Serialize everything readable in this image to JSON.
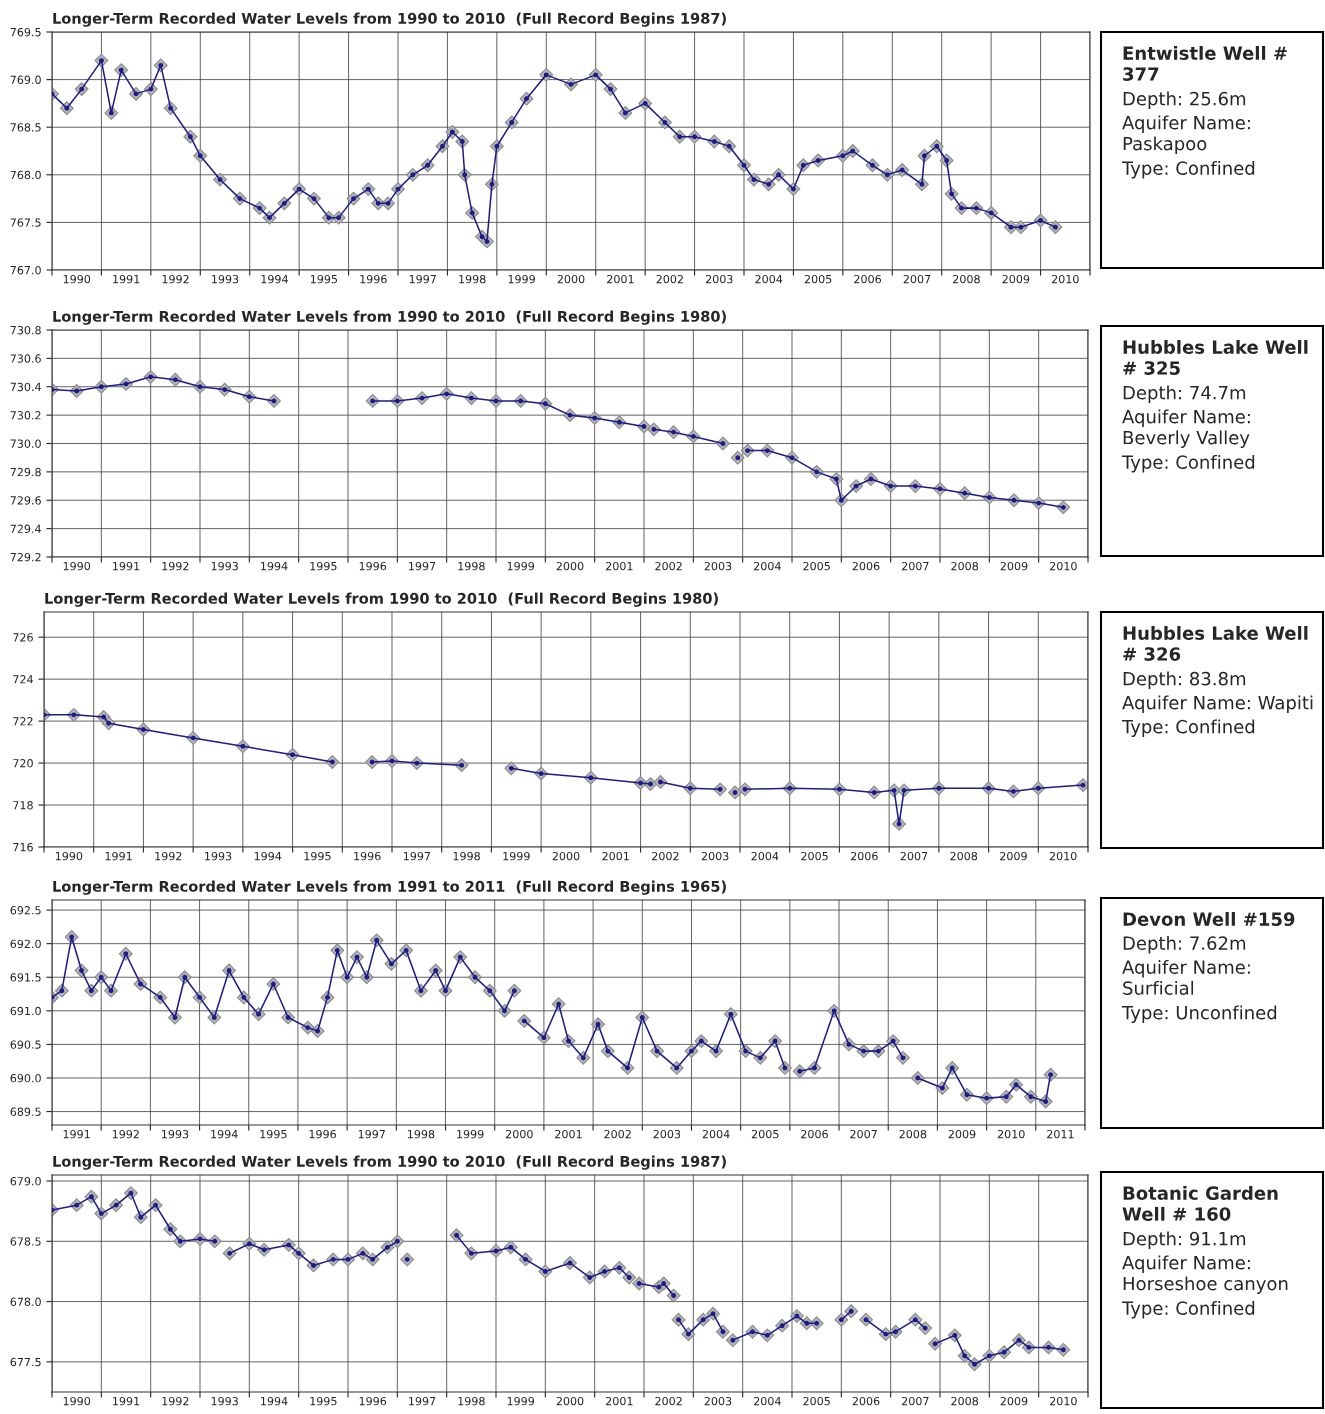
{
  "chart_data": [
    {
      "type": "line",
      "title": "Longer-Term Recorded Water Levels from 1990 to 2010  (Full Record Begins 1987)",
      "grid": true,
      "marker": "diamond",
      "line_style": "solid",
      "xlim": [
        1990,
        2011
      ],
      "xticks": [
        {
          "value": 1990,
          "label": null
        },
        {
          "value": 1990.5,
          "label": "1990"
        },
        {
          "value": 1991,
          "label": null
        },
        {
          "value": 1991.5,
          "label": "1991"
        },
        {
          "value": 1992,
          "label": null
        },
        {
          "value": 1992.5,
          "label": "1992"
        },
        {
          "value": 1993,
          "label": null
        },
        {
          "value": 1993.5,
          "label": "1993"
        },
        {
          "value": 1994,
          "label": null
        },
        {
          "value": 1994.5,
          "label": "1994"
        },
        {
          "value": 1995,
          "label": null
        },
        {
          "value": 1995.5,
          "label": "1995"
        },
        {
          "value": 1996,
          "label": null
        },
        {
          "value": 1996.5,
          "label": "1996"
        },
        {
          "value": 1997,
          "label": null
        },
        {
          "value": 1997.5,
          "label": "1997"
        },
        {
          "value": 1998,
          "label": null
        },
        {
          "value": 1998.5,
          "label": "1998"
        },
        {
          "value": 1999,
          "label": null
        },
        {
          "value": 1999.5,
          "label": "1999"
        },
        {
          "value": 2000,
          "label": null
        },
        {
          "value": 2000.5,
          "label": "2000"
        },
        {
          "value": 2001,
          "label": null
        },
        {
          "value": 2001.5,
          "label": "2001"
        },
        {
          "value": 2002,
          "label": null
        },
        {
          "value": 2002.5,
          "label": "2002"
        },
        {
          "value": 2003,
          "label": null
        },
        {
          "value": 2003.5,
          "label": "2003"
        },
        {
          "value": 2004,
          "label": null
        },
        {
          "value": 2004.5,
          "label": "2004"
        },
        {
          "value": 2005,
          "label": null
        },
        {
          "value": 2005.5,
          "label": "2005"
        },
        {
          "value": 2006,
          "label": null
        },
        {
          "value": 2006.5,
          "label": "2006"
        },
        {
          "value": 2007,
          "label": null
        },
        {
          "value": 2007.5,
          "label": "2007"
        },
        {
          "value": 2008,
          "label": null
        },
        {
          "value": 2008.5,
          "label": "2008"
        },
        {
          "value": 2009,
          "label": null
        },
        {
          "value": 2009.5,
          "label": "2009"
        },
        {
          "value": 2010,
          "label": null
        },
        {
          "value": 2010.5,
          "label": "2010"
        },
        {
          "value": 2011,
          "label": null
        }
      ],
      "ylim": [
        767.0,
        769.5
      ],
      "yticks": [
        {
          "value": 767.0,
          "label": "767.0"
        },
        {
          "value": 767.5,
          "label": "767.5"
        },
        {
          "value": 768.0,
          "label": "768.0"
        },
        {
          "value": 768.5,
          "label": "768.5"
        },
        {
          "value": 769.0,
          "label": "769.0"
        },
        {
          "value": 769.5,
          "label": "769.5"
        }
      ],
      "series": [
        {
          "color": "#1c1c8c",
          "x": [
            1990.0,
            1990.3,
            1990.6,
            1991.0,
            1991.2,
            1991.4,
            1991.7,
            1992.0,
            1992.2,
            1992.4,
            1992.8,
            1993.0,
            1993.4,
            1993.8,
            1994.2,
            1994.4,
            1994.7,
            1995.0,
            1995.3,
            1995.6,
            1995.8,
            1996.1,
            1996.4,
            1996.6,
            1996.8,
            1997.0,
            1997.3,
            1997.6,
            1997.9,
            1998.1,
            1998.3,
            1998.35,
            1998.5,
            1998.7,
            1998.8,
            1998.9,
            1999.0,
            1999.3,
            1999.6,
            2000.0,
            2000.5,
            2001.0,
            2001.3,
            2001.6,
            2002.0,
            2002.4,
            2002.7,
            2003.0,
            2003.4,
            2003.7,
            2004.0,
            2004.2,
            2004.5,
            2004.7,
            2005.0,
            2005.2,
            2005.5,
            2006.0,
            2006.2,
            2006.6,
            2006.9,
            2007.2,
            2007.6,
            2007.65,
            2007.9,
            2008.1,
            2008.2,
            2008.4,
            2008.7,
            2009.0,
            2009.4,
            2009.6,
            2010.0,
            2010.3
          ],
          "values": [
            768.85,
            768.7,
            768.9,
            769.2,
            768.65,
            769.1,
            768.85,
            768.9,
            769.15,
            768.7,
            768.4,
            768.2,
            767.95,
            767.75,
            767.65,
            767.55,
            767.7,
            767.85,
            767.75,
            767.55,
            767.55,
            767.75,
            767.85,
            767.7,
            767.7,
            767.85,
            768.0,
            768.1,
            768.3,
            768.45,
            768.35,
            768.0,
            767.6,
            767.35,
            767.3,
            767.9,
            768.3,
            768.55,
            768.8,
            769.05,
            768.95,
            769.05,
            768.9,
            768.65,
            768.75,
            768.55,
            768.4,
            768.4,
            768.35,
            768.3,
            768.1,
            767.95,
            767.9,
            768.0,
            767.85,
            768.1,
            768.15,
            768.2,
            768.25,
            768.1,
            768.0,
            768.05,
            767.9,
            768.2,
            768.3,
            768.15,
            767.8,
            767.65,
            767.65,
            767.6,
            767.45,
            767.45,
            767.52,
            767.45
          ]
        }
      ]
    },
    {
      "type": "other",
      "title": "Entwistle Well # 377",
      "annotations": [
        "Depth: 25.6m",
        "Aquifer Name: Paskapoo",
        "Type: Confined"
      ]
    },
    {
      "type": "line",
      "title": "Longer-Term Recorded Water Levels from 1990 to 2010  (Full Record Begins 1980)",
      "grid": true,
      "marker": "diamond",
      "line_style": "solid",
      "xlim": [
        1990,
        2011
      ],
      "xticks": [
        {
          "value": 1990,
          "label": null
        },
        {
          "value": 1990.5,
          "label": "1990"
        },
        {
          "value": 1991,
          "label": null
        },
        {
          "value": 1991.5,
          "label": "1991"
        },
        {
          "value": 1992,
          "label": null
        },
        {
          "value": 1992.5,
          "label": "1992"
        },
        {
          "value": 1993,
          "label": null
        },
        {
          "value": 1993.5,
          "label": "1993"
        },
        {
          "value": 1994,
          "label": null
        },
        {
          "value": 1994.5,
          "label": "1994"
        },
        {
          "value": 1995,
          "label": null
        },
        {
          "value": 1995.5,
          "label": "1995"
        },
        {
          "value": 1996,
          "label": null
        },
        {
          "value": 1996.5,
          "label": "1996"
        },
        {
          "value": 1997,
          "label": null
        },
        {
          "value": 1997.5,
          "label": "1997"
        },
        {
          "value": 1998,
          "label": null
        },
        {
          "value": 1998.5,
          "label": "1998"
        },
        {
          "value": 1999,
          "label": null
        },
        {
          "value": 1999.5,
          "label": "1999"
        },
        {
          "value": 2000,
          "label": null
        },
        {
          "value": 2000.5,
          "label": "2000"
        },
        {
          "value": 2001,
          "label": null
        },
        {
          "value": 2001.5,
          "label": "2001"
        },
        {
          "value": 2002,
          "label": null
        },
        {
          "value": 2002.5,
          "label": "2002"
        },
        {
          "value": 2003,
          "label": null
        },
        {
          "value": 2003.5,
          "label": "2003"
        },
        {
          "value": 2004,
          "label": null
        },
        {
          "value": 2004.5,
          "label": "2004"
        },
        {
          "value": 2005,
          "label": null
        },
        {
          "value": 2005.5,
          "label": "2005"
        },
        {
          "value": 2006,
          "label": null
        },
        {
          "value": 2006.5,
          "label": "2006"
        },
        {
          "value": 2007,
          "label": null
        },
        {
          "value": 2007.5,
          "label": "2007"
        },
        {
          "value": 2008,
          "label": null
        },
        {
          "value": 2008.5,
          "label": "2008"
        },
        {
          "value": 2009,
          "label": null
        },
        {
          "value": 2009.5,
          "label": "2009"
        },
        {
          "value": 2010,
          "label": null
        },
        {
          "value": 2010.5,
          "label": "2010"
        },
        {
          "value": 2011,
          "label": null
        }
      ],
      "ylim": [
        729.2,
        730.8
      ],
      "yticks": [
        {
          "value": 729.2,
          "label": "729.2"
        },
        {
          "value": 729.4,
          "label": "729.4"
        },
        {
          "value": 729.6,
          "label": "729.6"
        },
        {
          "value": 729.8,
          "label": "729.8"
        },
        {
          "value": 730.0,
          "label": "730.0"
        },
        {
          "value": 730.2,
          "label": "730.2"
        },
        {
          "value": 730.4,
          "label": "730.4"
        },
        {
          "value": 730.6,
          "label": "730.6"
        },
        {
          "value": 730.8,
          "label": "730.8"
        }
      ],
      "series": [
        {
          "color": "#1c1c8c",
          "x": [
            1990.0,
            1990.5,
            1991.0,
            1991.5,
            1992.0,
            1992.5,
            1993.0,
            1993.5,
            1994.0,
            1994.5,
            1995.5,
            1996.5,
            1997.0,
            1997.5,
            1998.0,
            1998.5,
            1999.0,
            1999.5,
            2000.0,
            2000.5,
            2001.0,
            2001.5,
            2002.0,
            2002.1,
            2002.2,
            2002.6,
            2003.0,
            2003.6,
            2003.75,
            2003.9,
            2004.0,
            2004.1,
            2004.5,
            2005.0,
            2005.5,
            2005.9,
            2006.0,
            2006.3,
            2006.6,
            2007.0,
            2007.5,
            2008.0,
            2008.5,
            2009.0,
            2009.5,
            2010.0,
            2010.5
          ],
          "values": [
            730.38,
            730.37,
            730.4,
            730.42,
            730.47,
            730.45,
            730.4,
            730.38,
            730.33,
            730.3,
            null,
            730.3,
            730.3,
            730.32,
            730.35,
            730.32,
            730.3,
            730.3,
            730.28,
            730.2,
            730.18,
            730.15,
            730.12,
            null,
            730.1,
            730.08,
            730.05,
            730.0,
            null,
            729.9,
            null,
            729.95,
            729.95,
            729.9,
            729.8,
            729.75,
            729.6,
            729.7,
            729.75,
            729.7,
            729.7,
            729.68,
            729.65,
            729.62,
            729.6,
            729.58,
            729.55
          ]
        }
      ]
    },
    {
      "type": "other",
      "title": "Hubbles Lake Well # 325",
      "annotations": [
        "Depth: 74.7m",
        "Aquifer Name: Beverly Valley",
        "Type: Confined"
      ]
    },
    {
      "type": "line",
      "title": "Longer-Term Recorded Water Levels from 1990 to 2010  (Full Record Begins 1980)",
      "grid": true,
      "marker": "diamond",
      "line_style": "solid",
      "xlim": [
        1990,
        2011
      ],
      "xticks": [
        {
          "value": 1990,
          "label": null
        },
        {
          "value": 1990.5,
          "label": "1990"
        },
        {
          "value": 1991,
          "label": null
        },
        {
          "value": 1991.5,
          "label": "1991"
        },
        {
          "value": 1992,
          "label": null
        },
        {
          "value": 1992.5,
          "label": "1992"
        },
        {
          "value": 1993,
          "label": null
        },
        {
          "value": 1993.5,
          "label": "1993"
        },
        {
          "value": 1994,
          "label": null
        },
        {
          "value": 1994.5,
          "label": "1994"
        },
        {
          "value": 1995,
          "label": null
        },
        {
          "value": 1995.5,
          "label": "1995"
        },
        {
          "value": 1996,
          "label": null
        },
        {
          "value": 1996.5,
          "label": "1996"
        },
        {
          "value": 1997,
          "label": null
        },
        {
          "value": 1997.5,
          "label": "1997"
        },
        {
          "value": 1998,
          "label": null
        },
        {
          "value": 1998.5,
          "label": "1998"
        },
        {
          "value": 1999,
          "label": null
        },
        {
          "value": 1999.5,
          "label": "1999"
        },
        {
          "value": 2000,
          "label": null
        },
        {
          "value": 2000.5,
          "label": "2000"
        },
        {
          "value": 2001,
          "label": null
        },
        {
          "value": 2001.5,
          "label": "2001"
        },
        {
          "value": 2002,
          "label": null
        },
        {
          "value": 2002.5,
          "label": "2002"
        },
        {
          "value": 2003,
          "label": null
        },
        {
          "value": 2003.5,
          "label": "2003"
        },
        {
          "value": 2004,
          "label": null
        },
        {
          "value": 2004.5,
          "label": "2004"
        },
        {
          "value": 2005,
          "label": null
        },
        {
          "value": 2005.5,
          "label": "2005"
        },
        {
          "value": 2006,
          "label": null
        },
        {
          "value": 2006.5,
          "label": "2006"
        },
        {
          "value": 2007,
          "label": null
        },
        {
          "value": 2007.5,
          "label": "2007"
        },
        {
          "value": 2008,
          "label": null
        },
        {
          "value": 2008.5,
          "label": "2008"
        },
        {
          "value": 2009,
          "label": null
        },
        {
          "value": 2009.5,
          "label": "2009"
        },
        {
          "value": 2010,
          "label": null
        },
        {
          "value": 2010.5,
          "label": "2010"
        },
        {
          "value": 2011,
          "label": null
        }
      ],
      "ylim": [
        716,
        727.2
      ],
      "yticks": [
        716,
        718,
        720,
        722,
        724,
        726
      ],
      "series": [
        {
          "color": "#1c1c8c",
          "x": [
            1990.0,
            1990.6,
            1991.2,
            1991.3,
            1992.0,
            1993.0,
            1994.0,
            1995.0,
            1995.8,
            1996.2,
            1996.6,
            1997.0,
            1997.5,
            1998.4,
            1998.9,
            1999.4,
            2000.0,
            2001.0,
            2002.0,
            2002.2,
            2002.3,
            2002.4,
            2003.0,
            2003.6,
            2003.75,
            2003.9,
            2004.0,
            2004.1,
            2005.0,
            2006.0,
            2006.7,
            2007.1,
            2007.2,
            2007.3,
            2008.0,
            2009.0,
            2009.5,
            2010.0,
            2010.9
          ],
          "values": [
            722.3,
            722.3,
            722.2,
            721.9,
            721.6,
            721.2,
            720.8,
            720.4,
            720.05,
            null,
            720.05,
            720.1,
            720.0,
            719.9,
            null,
            719.75,
            719.5,
            719.3,
            719.05,
            719.0,
            null,
            719.1,
            718.8,
            718.75,
            null,
            718.6,
            null,
            718.75,
            718.8,
            718.75,
            718.6,
            718.7,
            717.1,
            718.7,
            718.8,
            718.8,
            718.65,
            718.8,
            718.95
          ]
        }
      ]
    },
    {
      "type": "other",
      "title": "Hubbles Lake Well # 326",
      "annotations": [
        "Depth: 83.8m",
        "Aquifer Name: Wapiti",
        "Type: Confined"
      ]
    },
    {
      "type": "line",
      "title": "Longer-Term Recorded Water Levels from 1991 to 2011  (Full Record Begins 1965)",
      "grid": true,
      "marker": "diamond",
      "line_style": "solid",
      "xlim": [
        1991,
        2012
      ],
      "xticks": [
        {
          "value": 1991,
          "label": null
        },
        {
          "value": 1991.5,
          "label": "1991"
        },
        {
          "value": 1992,
          "label": null
        },
        {
          "value": 1992.5,
          "label": "1992"
        },
        {
          "value": 1993,
          "label": null
        },
        {
          "value": 1993.5,
          "label": "1993"
        },
        {
          "value": 1994,
          "label": null
        },
        {
          "value": 1994.5,
          "label": "1994"
        },
        {
          "value": 1995,
          "label": null
        },
        {
          "value": 1995.5,
          "label": "1995"
        },
        {
          "value": 1996,
          "label": null
        },
        {
          "value": 1996.5,
          "label": "1996"
        },
        {
          "value": 1997,
          "label": null
        },
        {
          "value": 1997.5,
          "label": "1997"
        },
        {
          "value": 1998,
          "label": null
        },
        {
          "value": 1998.5,
          "label": "1998"
        },
        {
          "value": 1999,
          "label": null
        },
        {
          "value": 1999.5,
          "label": "1999"
        },
        {
          "value": 2000,
          "label": null
        },
        {
          "value": 2000.5,
          "label": "2000"
        },
        {
          "value": 2001,
          "label": null
        },
        {
          "value": 2001.5,
          "label": "2001"
        },
        {
          "value": 2002,
          "label": null
        },
        {
          "value": 2002.5,
          "label": "2002"
        },
        {
          "value": 2003,
          "label": null
        },
        {
          "value": 2003.5,
          "label": "2003"
        },
        {
          "value": 2004,
          "label": null
        },
        {
          "value": 2004.5,
          "label": "2004"
        },
        {
          "value": 2005,
          "label": null
        },
        {
          "value": 2005.5,
          "label": "2005"
        },
        {
          "value": 2006,
          "label": null
        },
        {
          "value": 2006.5,
          "label": "2006"
        },
        {
          "value": 2007,
          "label": null
        },
        {
          "value": 2007.5,
          "label": "2007"
        },
        {
          "value": 2008,
          "label": null
        },
        {
          "value": 2008.5,
          "label": "2008"
        },
        {
          "value": 2009,
          "label": null
        },
        {
          "value": 2009.5,
          "label": "2009"
        },
        {
          "value": 2010,
          "label": null
        },
        {
          "value": 2010.5,
          "label": "2010"
        },
        {
          "value": 2011,
          "label": null
        },
        {
          "value": 2011.5,
          "label": "2011"
        },
        {
          "value": 2012,
          "label": null
        }
      ],
      "ylim": [
        689.3,
        692.65
      ],
      "yticks": [
        {
          "value": 689.5,
          "label": "689.5"
        },
        {
          "value": 690.0,
          "label": "690.0"
        },
        {
          "value": 690.5,
          "label": "690.5"
        },
        {
          "value": 691.0,
          "label": "691.0"
        },
        {
          "value": 691.5,
          "label": "691.5"
        },
        {
          "value": 692.0,
          "label": "692.0"
        },
        {
          "value": 692.5,
          "label": "692.5"
        }
      ],
      "series": [
        {
          "color": "#1c1c8c",
          "x": [
            1991.0,
            1991.2,
            1991.4,
            1991.6,
            1991.8,
            1992.0,
            1992.2,
            1992.5,
            1992.8,
            1993.2,
            1993.5,
            1993.7,
            1994.0,
            1994.3,
            1994.6,
            1994.9,
            1995.2,
            1995.5,
            1995.8,
            1996.2,
            1996.4,
            1996.6,
            1996.8,
            1997.0,
            1997.2,
            1997.4,
            1997.6,
            1997.9,
            1998.2,
            1998.5,
            1998.8,
            1999.0,
            1999.3,
            1999.6,
            1999.9,
            2000.2,
            2000.4,
            2000.5,
            2000.6,
            2001.0,
            2001.3,
            2001.5,
            2001.8,
            2002.1,
            2002.3,
            2002.7,
            2003.0,
            2003.3,
            2003.7,
            2004.0,
            2004.2,
            2004.5,
            2004.8,
            2005.1,
            2005.4,
            2005.7,
            2005.9,
            2006.0,
            2006.2,
            2006.5,
            2006.9,
            2007.2,
            2007.5,
            2007.8,
            2008.1,
            2008.3,
            2008.45,
            2008.6,
            2009.1,
            2009.3,
            2009.6,
            2010.0,
            2010.4,
            2010.6,
            2010.9,
            2011.2,
            2011.3
          ],
          "values": [
            691.2,
            691.3,
            692.1,
            691.6,
            691.3,
            691.5,
            691.3,
            691.85,
            691.4,
            691.2,
            690.9,
            691.5,
            691.2,
            690.9,
            691.6,
            691.2,
            690.95,
            691.4,
            690.9,
            690.75,
            690.7,
            691.2,
            691.9,
            691.5,
            691.8,
            691.5,
            692.05,
            691.7,
            691.9,
            691.3,
            691.6,
            691.3,
            691.8,
            691.5,
            691.3,
            691.0,
            691.3,
            null,
            690.85,
            690.6,
            691.1,
            690.55,
            690.3,
            690.8,
            690.4,
            690.15,
            690.9,
            690.4,
            690.15,
            690.4,
            690.55,
            690.4,
            690.95,
            690.4,
            690.3,
            690.55,
            690.15,
            null,
            690.1,
            690.15,
            691.0,
            690.5,
            690.4,
            690.4,
            690.55,
            690.3,
            null,
            690.0,
            689.85,
            690.15,
            689.75,
            689.7,
            689.72,
            689.9,
            689.72,
            689.65,
            690.05
          ]
        }
      ]
    },
    {
      "type": "other",
      "title": "Devon Well #159",
      "annotations": [
        "Depth: 7.62m",
        "Aquifer Name: Surficial",
        "Type: Unconfined"
      ]
    },
    {
      "type": "line",
      "title": "Longer-Term Recorded Water Levels from 1990 to 2010  (Full Record Begins 1987)",
      "grid": true,
      "marker": "diamond",
      "line_style": "solid",
      "xlim": [
        1990,
        2011
      ],
      "xticks": [
        {
          "value": 1990,
          "label": null
        },
        {
          "value": 1990.5,
          "label": "1990"
        },
        {
          "value": 1991,
          "label": null
        },
        {
          "value": 1991.5,
          "label": "1991"
        },
        {
          "value": 1992,
          "label": null
        },
        {
          "value": 1992.5,
          "label": "1992"
        },
        {
          "value": 1993,
          "label": null
        },
        {
          "value": 1993.5,
          "label": "1993"
        },
        {
          "value": 1994,
          "label": null
        },
        {
          "value": 1994.5,
          "label": "1994"
        },
        {
          "value": 1995,
          "label": null
        },
        {
          "value": 1995.5,
          "label": "1995"
        },
        {
          "value": 1996,
          "label": null
        },
        {
          "value": 1996.5,
          "label": "1996"
        },
        {
          "value": 1997,
          "label": null
        },
        {
          "value": 1997.5,
          "label": "1997"
        },
        {
          "value": 1998,
          "label": null
        },
        {
          "value": 1998.5,
          "label": "1998"
        },
        {
          "value": 1999,
          "label": null
        },
        {
          "value": 1999.5,
          "label": "1999"
        },
        {
          "value": 2000,
          "label": null
        },
        {
          "value": 2000.5,
          "label": "2000"
        },
        {
          "value": 2001,
          "label": null
        },
        {
          "value": 2001.5,
          "label": "2001"
        },
        {
          "value": 2002,
          "label": null
        },
        {
          "value": 2002.5,
          "label": "2002"
        },
        {
          "value": 2003,
          "label": null
        },
        {
          "value": 2003.5,
          "label": "2003"
        },
        {
          "value": 2004,
          "label": null
        },
        {
          "value": 2004.5,
          "label": "2004"
        },
        {
          "value": 2005,
          "label": null
        },
        {
          "value": 2005.5,
          "label": "2005"
        },
        {
          "value": 2006,
          "label": null
        },
        {
          "value": 2006.5,
          "label": "2006"
        },
        {
          "value": 2007,
          "label": null
        },
        {
          "value": 2007.5,
          "label": "2007"
        },
        {
          "value": 2008,
          "label": null
        },
        {
          "value": 2008.5,
          "label": "2008"
        },
        {
          "value": 2009,
          "label": null
        },
        {
          "value": 2009.5,
          "label": "2009"
        },
        {
          "value": 2010,
          "label": null
        },
        {
          "value": 2010.5,
          "label": "2010"
        },
        {
          "value": 2011,
          "label": null
        }
      ],
      "ylim": [
        677.25,
        679.05
      ],
      "yticks": [
        {
          "value": 677.5,
          "label": "677.5"
        },
        {
          "value": 678.0,
          "label": "678.0"
        },
        {
          "value": 678.5,
          "label": "678.5"
        },
        {
          "value": 679.0,
          "label": "679.0"
        }
      ],
      "series": [
        {
          "color": "#1c1c8c",
          "x": [
            1990.0,
            1990.5,
            1990.8,
            1991.0,
            1991.3,
            1991.6,
            1991.8,
            1992.1,
            1992.4,
            1992.6,
            1993.0,
            1993.3,
            1993.45,
            1993.6,
            1994.0,
            1994.3,
            1994.8,
            1995.0,
            1995.3,
            1995.7,
            1996.0,
            1996.3,
            1996.5,
            1996.8,
            1997.0,
            1997.1,
            1997.2,
            1997.5,
            1998.2,
            1998.5,
            1999.0,
            1999.3,
            1999.6,
            2000.0,
            2000.5,
            2000.9,
            2001.2,
            2001.5,
            2001.7,
            2001.8,
            2001.9,
            2002.3,
            2002.4,
            2002.6,
            2002.65,
            2002.7,
            2002.9,
            2003.2,
            2003.4,
            2003.6,
            2003.7,
            2003.8,
            2004.2,
            2004.5,
            2004.8,
            2005.1,
            2005.3,
            2005.5,
            2005.7,
            2006.0,
            2006.2,
            2006.35,
            2006.5,
            2006.9,
            2007.1,
            2007.5,
            2007.7,
            2007.8,
            2007.9,
            2008.3,
            2008.5,
            2008.7,
            2009.0,
            2009.3,
            2009.6,
            2009.8,
            2010.2,
            2010.5
          ],
          "values": [
            678.76,
            678.8,
            678.87,
            678.73,
            678.8,
            678.9,
            678.7,
            678.8,
            678.6,
            678.5,
            678.52,
            678.5,
            null,
            678.4,
            678.48,
            678.43,
            678.47,
            678.4,
            678.3,
            678.35,
            678.35,
            678.4,
            678.35,
            678.45,
            678.5,
            null,
            678.35,
            null,
            678.55,
            678.4,
            678.42,
            678.45,
            678.35,
            678.25,
            678.32,
            678.2,
            678.25,
            678.28,
            678.2,
            null,
            678.15,
            678.12,
            678.15,
            678.05,
            null,
            677.85,
            677.73,
            677.85,
            677.9,
            677.75,
            null,
            677.68,
            677.75,
            677.72,
            677.8,
            677.88,
            677.82,
            677.82,
            null,
            677.85,
            677.92,
            null,
            677.85,
            677.73,
            677.75,
            677.85,
            677.78,
            null,
            677.65,
            677.72,
            677.55,
            677.48,
            677.55,
            677.58,
            677.68,
            677.62,
            677.62,
            677.6
          ]
        }
      ]
    },
    {
      "type": "other",
      "title": "Botanic Garden Well # 160",
      "annotations": [
        "Depth: 91.1m",
        "Aquifer Name: Horseshoe canyon",
        "Type: Confined"
      ]
    }
  ]
}
